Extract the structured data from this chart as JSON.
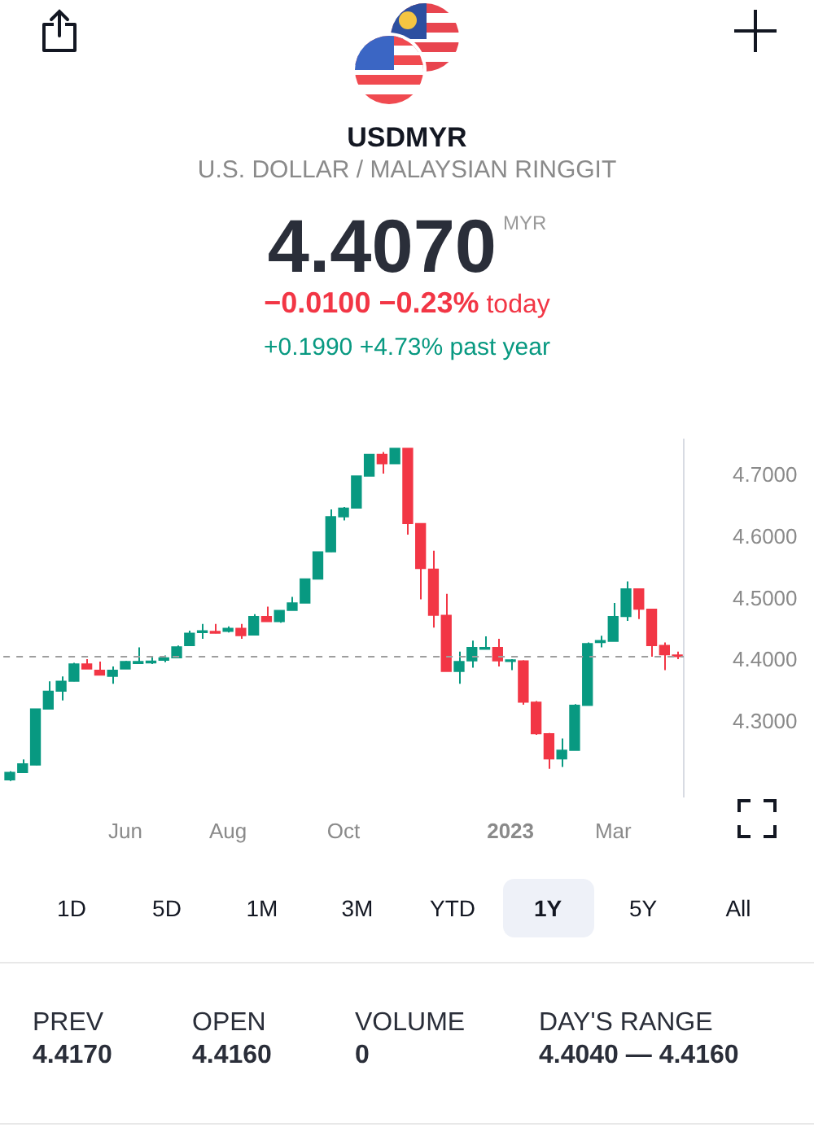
{
  "chart_data": {
    "type": "candlestick",
    "title": "USDMYR",
    "subtitle": "U.S. DOLLAR / MALAYSIAN RINGGIT",
    "categories": [
      null,
      null,
      null,
      null,
      null,
      null,
      null,
      null,
      null,
      "Jun",
      null,
      null,
      null,
      null,
      null,
      null,
      null,
      "Aug",
      null,
      null,
      null,
      null,
      null,
      null,
      null,
      null,
      "Oct",
      null,
      null,
      null,
      null,
      null,
      null,
      null,
      null,
      null,
      null,
      null,
      null,
      "2023",
      null,
      null,
      null,
      null,
      null,
      null,
      null,
      "Mar",
      null,
      null,
      null,
      null,
      null
    ],
    "ohlc": [
      [
        4.207,
        4.221,
        4.205,
        4.219
      ],
      [
        4.219,
        4.24,
        4.219,
        4.233
      ],
      [
        4.231,
        4.322,
        4.231,
        4.322
      ],
      [
        4.322,
        4.367,
        4.322,
        4.351
      ],
      [
        4.351,
        4.375,
        4.336,
        4.367
      ],
      [
        4.367,
        4.397,
        4.367,
        4.395
      ],
      [
        4.395,
        4.403,
        4.387,
        4.387
      ],
      [
        4.385,
        4.399,
        4.377,
        4.377
      ],
      [
        4.375,
        4.391,
        4.363,
        4.385
      ],
      [
        4.387,
        4.4,
        4.387,
        4.399
      ],
      [
        4.396,
        4.422,
        4.396,
        4.399
      ],
      [
        4.397,
        4.407,
        4.395,
        4.399
      ],
      [
        4.401,
        4.409,
        4.398,
        4.405
      ],
      [
        4.405,
        4.425,
        4.405,
        4.423
      ],
      [
        4.425,
        4.449,
        4.425,
        4.445
      ],
      [
        4.446,
        4.46,
        4.436,
        4.449
      ],
      [
        4.448,
        4.46,
        4.445,
        4.445
      ],
      [
        4.448,
        4.456,
        4.446,
        4.453
      ],
      [
        4.453,
        4.46,
        4.436,
        4.441
      ],
      [
        4.442,
        4.476,
        4.442,
        4.472
      ],
      [
        4.472,
        4.488,
        4.464,
        4.464
      ],
      [
        4.464,
        4.482,
        4.462,
        4.482
      ],
      [
        4.482,
        4.504,
        4.482,
        4.494
      ],
      [
        4.494,
        4.533,
        4.494,
        4.533
      ],
      [
        4.533,
        4.577,
        4.533,
        4.577
      ],
      [
        4.577,
        4.646,
        4.577,
        4.634
      ],
      [
        4.634,
        4.65,
        4.628,
        4.648
      ],
      [
        4.648,
        4.7,
        4.648,
        4.7
      ],
      [
        4.7,
        4.735,
        4.7,
        4.735
      ],
      [
        4.735,
        4.739,
        4.704,
        4.72
      ],
      [
        4.72,
        4.745,
        4.72,
        4.745
      ],
      [
        4.745,
        4.745,
        4.605,
        4.623
      ],
      [
        4.623,
        4.623,
        4.5,
        4.55
      ],
      [
        4.549,
        4.579,
        4.454,
        4.474
      ],
      [
        4.474,
        4.509,
        4.383,
        4.383
      ],
      [
        4.383,
        4.415,
        4.363,
        4.399
      ],
      [
        4.4,
        4.433,
        4.389,
        4.422
      ],
      [
        4.419,
        4.44,
        4.419,
        4.422
      ],
      [
        4.422,
        4.436,
        4.391,
        4.4
      ],
      [
        4.399,
        4.403,
        4.385,
        4.401
      ],
      [
        4.4,
        4.401,
        4.329,
        4.333
      ],
      [
        4.333,
        4.335,
        4.28,
        4.282
      ],
      [
        4.282,
        4.283,
        4.225,
        4.241
      ],
      [
        4.241,
        4.274,
        4.228,
        4.255
      ],
      [
        4.255,
        4.33,
        4.255,
        4.328
      ],
      [
        4.328,
        4.43,
        4.328,
        4.428
      ],
      [
        4.43,
        4.441,
        4.422,
        4.433
      ],
      [
        4.432,
        4.494,
        4.432,
        4.472
      ],
      [
        4.472,
        4.529,
        4.465,
        4.517
      ],
      [
        4.517,
        4.517,
        4.468,
        4.484
      ],
      [
        4.484,
        4.484,
        4.407,
        4.425
      ],
      [
        4.425,
        4.43,
        4.385,
        4.41
      ],
      [
        4.409,
        4.415,
        4.403,
        4.407
      ]
    ],
    "colors": [
      "#089981",
      "#089981",
      "#089981",
      "#089981",
      "#089981",
      "#089981",
      "#f23645",
      "#f23645",
      "#089981",
      "#089981",
      "#089981",
      "#089981",
      "#089981",
      "#089981",
      "#089981",
      "#089981",
      "#f23645",
      "#089981",
      "#f23645",
      "#089981",
      "#f23645",
      "#089981",
      "#089981",
      "#089981",
      "#089981",
      "#089981",
      "#089981",
      "#089981",
      "#089981",
      "#f23645",
      "#089981",
      "#f23645",
      "#f23645",
      "#f23645",
      "#f23645",
      "#089981",
      "#089981",
      "#089981",
      "#f23645",
      "#089981",
      "#f23645",
      "#f23645",
      "#f23645",
      "#089981",
      "#089981",
      "#089981",
      "#089981",
      "#089981",
      "#089981",
      "#f23645",
      "#f23645",
      "#f23645",
      "#f23645"
    ],
    "ylim": [
      4.18,
      4.76
    ],
    "yticks": [
      {
        "value": 4.3,
        "label": "4.3000"
      },
      {
        "value": 4.4,
        "label": "4.4000"
      },
      {
        "value": 4.5,
        "label": "4.5000"
      },
      {
        "value": 4.6,
        "label": "4.6000"
      },
      {
        "value": 4.7,
        "label": "4.7000"
      }
    ],
    "grid": false,
    "legend": false,
    "ref_lines": [
      {
        "axis": "y",
        "value": 4.407,
        "color": "#9e9e9e",
        "line_style": "dashed"
      }
    ],
    "annotations": [
      "4.4070",
      "MYR",
      "−0.0100 −0.23%",
      "today",
      "+0.1990 +4.73% past year",
      "1D",
      "5D",
      "1M",
      "3M",
      "YTD",
      "1Y",
      "5Y",
      "All",
      "PREV",
      "4.4170",
      "OPEN",
      "4.4160",
      "VOLUME",
      "0",
      "DAY'S RANGE",
      "4.4040 — 4.4160"
    ]
  }
}
